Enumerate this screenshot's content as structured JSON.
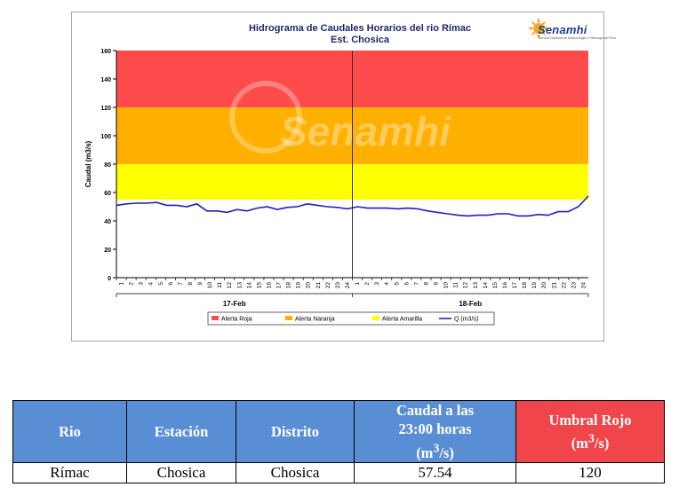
{
  "chart_data": {
    "type": "line",
    "title": "Hidrograma de Caudales Horarios del rio Rímac",
    "subtitle": "Est. Chosica",
    "ylabel": "Caudal  (m3/s)",
    "ylim": [
      0,
      160
    ],
    "yticks": [
      "0",
      "20",
      "40",
      "60",
      "80",
      "100",
      "120",
      "140",
      "160"
    ],
    "x_ticks_day1": [
      "1",
      "2",
      "3",
      "4",
      "5",
      "6",
      "7",
      "8",
      "9",
      "10",
      "11",
      "12",
      "13",
      "14",
      "15",
      "16",
      "17",
      "18",
      "19",
      "20",
      "21",
      "22",
      "23",
      "24"
    ],
    "x_ticks_day2": [
      "1",
      "2",
      "3",
      "4",
      "5",
      "6",
      "7",
      "8",
      "9",
      "10",
      "11",
      "12",
      "13",
      "14",
      "15",
      "16",
      "17",
      "18",
      "19",
      "20",
      "21",
      "22",
      "23",
      "24"
    ],
    "days": [
      "17-Feb",
      "18-Feb"
    ],
    "alert_bands": [
      {
        "name": "Alerta Roja",
        "from": 120,
        "to": 160,
        "color": "#ff4b4b"
      },
      {
        "name": "Alerta Naranja",
        "from": 80,
        "to": 120,
        "color": "#ffb000"
      },
      {
        "name": "Alerta Amarilla",
        "from": 55,
        "to": 80,
        "color": "#ffff00"
      }
    ],
    "series": [
      {
        "name": "Q (m3/s)",
        "color": "#1f1fbf",
        "values": [
          51,
          52,
          52.5,
          52.5,
          53,
          51,
          51,
          50,
          52,
          47,
          47,
          46,
          48,
          47,
          49,
          50,
          48,
          49.5,
          50,
          52,
          51,
          50,
          49.5,
          48.5,
          50,
          49,
          49,
          49,
          48.5,
          49,
          48.5,
          47,
          46,
          45,
          44,
          43.5,
          44,
          44,
          45,
          45,
          43.5,
          43.5,
          44.5,
          44,
          46.5,
          46.5,
          50,
          57.5
        ]
      }
    ],
    "legend": [
      "Alerta Roja",
      "Alerta Naranja",
      "Alerta Amarilla",
      "Q (m3/s)"
    ],
    "legend_position": "bottom",
    "watermark": "Senamhi"
  },
  "logo": {
    "text": "Senamhi",
    "subtext": "Servicio Nacional de Meteorología e Hidrología del Perú"
  },
  "table": {
    "headers": [
      "Rio",
      "Estación",
      "Distrito",
      "Caudal a las 23:00 horas (m3/s)",
      "Umbral Rojo (m3/s)"
    ],
    "header_caudal_line1": "Caudal a las",
    "header_caudal_line2": "23:00 horas",
    "header_caudal_unit": "(m3/s)",
    "header_umbral_line1": "Umbral Rojo",
    "header_umbral_unit": "(m3/s)",
    "row": [
      "Rímac",
      "Chosica",
      "Chosica",
      "57.54",
      "120"
    ]
  }
}
